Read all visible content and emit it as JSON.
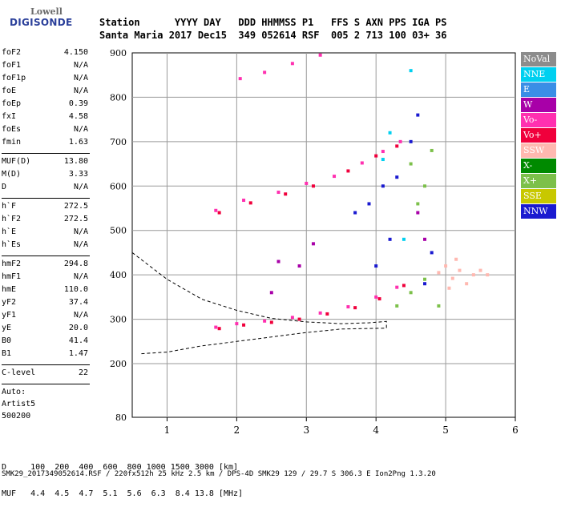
{
  "logo": {
    "top": "Lowell",
    "bottom": "DIGISONDE"
  },
  "header": {
    "labels": "Station      YYYY DAY   DDD HHMMSS P1   FFS S AXN PPS IGA PS",
    "values": "Santa Maria 2017 Dec15  349 052614 RSF  005 2 713 100 03+ 36"
  },
  "params": [
    {
      "name": "foF2",
      "value": "4.150"
    },
    {
      "name": "foF1",
      "value": "N/A"
    },
    {
      "name": "foF1p",
      "value": "N/A"
    },
    {
      "name": "foE",
      "value": "N/A"
    },
    {
      "name": "foEp",
      "value": "0.39"
    },
    {
      "name": "fxI",
      "value": "4.58"
    },
    {
      "name": "foEs",
      "value": "N/A"
    },
    {
      "name": "fmin",
      "value": "1.63"
    },
    {
      "sep": true
    },
    {
      "name": "MUF(D)",
      "value": "13.80"
    },
    {
      "name": "M(D)",
      "value": "3.33"
    },
    {
      "name": "D",
      "value": "N/A"
    },
    {
      "sep": true
    },
    {
      "name": "h`F",
      "value": "272.5"
    },
    {
      "name": "h`F2",
      "value": "272.5"
    },
    {
      "name": "h`E",
      "value": "N/A"
    },
    {
      "name": "h`Es",
      "value": "N/A"
    },
    {
      "sep": true
    },
    {
      "name": "hmF2",
      "value": "294.8"
    },
    {
      "name": "hmF1",
      "value": "N/A"
    },
    {
      "name": "hmE",
      "value": "110.0"
    },
    {
      "name": "yF2",
      "value": "37.4"
    },
    {
      "name": "yF1",
      "value": "N/A"
    },
    {
      "name": "yE",
      "value": "20.0"
    },
    {
      "name": "B0",
      "value": "41.4"
    },
    {
      "name": "B1",
      "value": "1.47"
    },
    {
      "sep": true
    },
    {
      "name": "C-level",
      "value": "22"
    },
    {
      "sep": true
    },
    {
      "text": "Auto:"
    },
    {
      "text": "Artist5"
    },
    {
      "text": "500200"
    }
  ],
  "legend": [
    {
      "label": "NoVal",
      "color": "#8c8c8c"
    },
    {
      "label": "NNE",
      "color": "#00d0f0"
    },
    {
      "label": "E",
      "color": "#3a8ee6"
    },
    {
      "label": "W",
      "color": "#a800a8"
    },
    {
      "label": "Vo-",
      "color": "#ff30b0"
    },
    {
      "label": "Vo+",
      "color": "#f0003c"
    },
    {
      "label": "SSW",
      "color": "#ffb8b0"
    },
    {
      "label": "X-",
      "color": "#008a00"
    },
    {
      "label": "X+",
      "color": "#7cc04a"
    },
    {
      "label": "SSE",
      "color": "#c8c800"
    },
    {
      "label": "NNW",
      "color": "#1a1ad0"
    }
  ],
  "bottom": {
    "line1": "D     100  200  400  600  800 1000 1500 3000 [km]",
    "line2": "MUF   4.4  4.5  4.7  5.1  5.6  6.3  8.4 13.8 [MHz]"
  },
  "footer": "SMK29_2017349052614.RSF / 220fx512h 25 kHz 2.5 km / DPS-4D SMK29 129 / 29.7 S 306.3 E Ion2Png 1.3.20",
  "chart_data": {
    "type": "scatter",
    "title": "",
    "xlabel": "",
    "ylabel": "",
    "xlim": [
      0.5,
      6
    ],
    "ylim": [
      80,
      900
    ],
    "x_ticks": [
      1,
      2,
      3,
      4,
      5,
      6
    ],
    "y_ticks": [
      80,
      200,
      300,
      400,
      500,
      600,
      700,
      800,
      900
    ],
    "grid": true,
    "legend_position": "right",
    "series": [
      {
        "name": "Vo-",
        "values": [
          [
            1.7,
            282
          ],
          [
            2.0,
            290
          ],
          [
            2.4,
            296
          ],
          [
            2.8,
            304
          ],
          [
            3.2,
            314
          ],
          [
            3.6,
            328
          ],
          [
            4.0,
            350
          ],
          [
            4.3,
            372
          ],
          [
            1.7,
            545
          ],
          [
            2.1,
            568
          ],
          [
            2.6,
            586
          ],
          [
            3.0,
            606
          ],
          [
            3.4,
            622
          ],
          [
            3.8,
            652
          ],
          [
            4.1,
            678
          ],
          [
            4.35,
            700
          ],
          [
            2.05,
            842
          ],
          [
            2.4,
            856
          ],
          [
            2.8,
            876
          ],
          [
            3.2,
            895
          ]
        ]
      },
      {
        "name": "Vo+",
        "values": [
          [
            1.75,
            279
          ],
          [
            2.1,
            287
          ],
          [
            2.5,
            293
          ],
          [
            2.9,
            300
          ],
          [
            3.3,
            312
          ],
          [
            3.7,
            326
          ],
          [
            4.05,
            346
          ],
          [
            4.4,
            376
          ],
          [
            1.75,
            540
          ],
          [
            2.2,
            562
          ],
          [
            2.7,
            582
          ],
          [
            3.1,
            600
          ],
          [
            3.6,
            634
          ],
          [
            4.0,
            668
          ],
          [
            4.3,
            690
          ]
        ]
      },
      {
        "name": "SSW",
        "values": [
          [
            4.9,
            405
          ],
          [
            5.0,
            420
          ],
          [
            5.1,
            392
          ],
          [
            5.2,
            410
          ],
          [
            5.3,
            380
          ],
          [
            5.4,
            400
          ],
          [
            5.5,
            410
          ],
          [
            5.6,
            400
          ],
          [
            5.05,
            370
          ],
          [
            5.15,
            435
          ]
        ]
      },
      {
        "name": "X+",
        "values": [
          [
            4.3,
            330
          ],
          [
            4.5,
            360
          ],
          [
            4.7,
            390
          ],
          [
            4.9,
            330
          ],
          [
            4.6,
            560
          ],
          [
            4.7,
            600
          ],
          [
            4.5,
            650
          ],
          [
            4.8,
            680
          ]
        ]
      },
      {
        "name": "NNW",
        "values": [
          [
            3.7,
            540
          ],
          [
            3.9,
            560
          ],
          [
            4.1,
            600
          ],
          [
            4.3,
            620
          ],
          [
            4.5,
            700
          ],
          [
            4.6,
            760
          ],
          [
            4.0,
            420
          ],
          [
            4.7,
            380
          ],
          [
            4.2,
            480
          ],
          [
            4.8,
            450
          ]
        ]
      },
      {
        "name": "NNE",
        "values": [
          [
            4.4,
            480
          ],
          [
            4.1,
            660
          ],
          [
            4.2,
            720
          ],
          [
            4.5,
            860
          ]
        ]
      },
      {
        "name": "W",
        "values": [
          [
            4.6,
            540
          ],
          [
            4.7,
            480
          ],
          [
            3.1,
            470
          ],
          [
            2.9,
            420
          ],
          [
            2.6,
            430
          ],
          [
            2.5,
            360
          ]
        ]
      }
    ],
    "profile_curve": [
      [
        0.5,
        450
      ],
      [
        1.0,
        390
      ],
      [
        1.5,
        345
      ],
      [
        2.0,
        320
      ],
      [
        2.5,
        302
      ],
      [
        3.0,
        294
      ],
      [
        3.5,
        290
      ],
      [
        3.9,
        292
      ],
      [
        4.15,
        295
      ],
      [
        4.15,
        280
      ],
      [
        3.5,
        278
      ],
      [
        3.0,
        270
      ],
      [
        2.5,
        260
      ],
      [
        2.0,
        250
      ],
      [
        1.5,
        240
      ],
      [
        1.0,
        226
      ],
      [
        0.6,
        222
      ]
    ]
  }
}
